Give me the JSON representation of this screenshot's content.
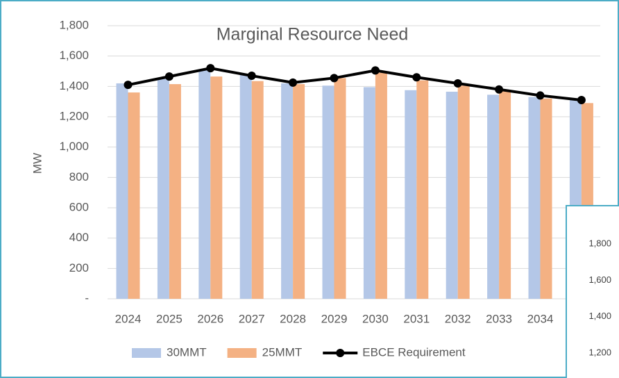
{
  "chart_data": [
    {
      "type": "bar",
      "title": "Marginal Resource Need",
      "y_label": "MW",
      "categories": [
        "2024",
        "2025",
        "2026",
        "2027",
        "2028",
        "2029",
        "2030",
        "2031",
        "2032",
        "2033",
        "2034",
        null
      ],
      "series": [
        {
          "name": "30MMT",
          "color": "#b4c7e7",
          "kind": "bar",
          "values": [
            1420,
            1450,
            1510,
            1480,
            1420,
            1405,
            1395,
            1375,
            1365,
            1345,
            1330,
            1310
          ]
        },
        {
          "name": "25MMT",
          "color": "#f4b183",
          "kind": "bar",
          "values": [
            1360,
            1415,
            1465,
            1435,
            1415,
            1455,
            1490,
            1440,
            1405,
            1370,
            1320,
            1290
          ]
        },
        {
          "name": "EBCE Requirement",
          "color": "#000000",
          "kind": "line",
          "values": [
            1410,
            1465,
            1520,
            1470,
            1425,
            1455,
            1505,
            1460,
            1420,
            1380,
            1340,
            1310
          ]
        }
      ],
      "ylim": [
        0,
        1800
      ],
      "yticks": [
        {
          "value": 0,
          "label": "-"
        },
        {
          "value": 200,
          "label": "200"
        },
        {
          "value": 400,
          "label": "400"
        },
        {
          "value": 600,
          "label": "600"
        },
        {
          "value": 800,
          "label": "800"
        },
        {
          "value": 1000,
          "label": "1,000"
        },
        {
          "value": 1200,
          "label": "1,200"
        },
        {
          "value": 1400,
          "label": "1,400"
        },
        {
          "value": 1600,
          "label": "1,600"
        },
        {
          "value": 1800,
          "label": "1,800"
        }
      ],
      "grid": true,
      "legend": "bottom"
    },
    {
      "type": "bar",
      "yticks": [
        {
          "value": 1200,
          "label": "1,200"
        },
        {
          "value": 1400,
          "label": "1,400"
        },
        {
          "value": 1600,
          "label": "1,600"
        },
        {
          "value": 1800,
          "label": "1,800"
        }
      ]
    }
  ]
}
